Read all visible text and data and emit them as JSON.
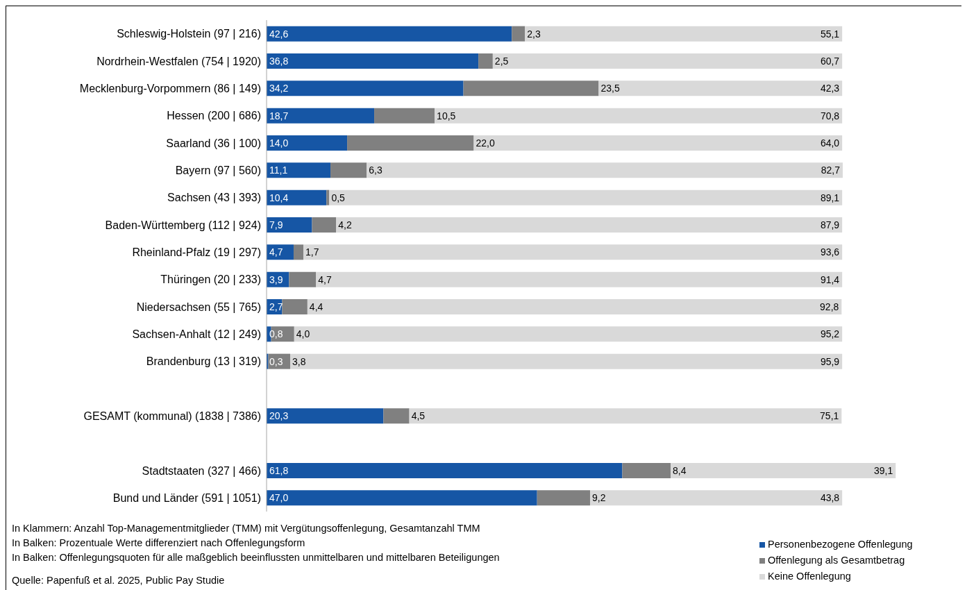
{
  "chart_data": {
    "type": "bar",
    "orientation": "horizontal",
    "stacked": true,
    "tick_labels": "y",
    "legend": "bottom right",
    "grid": false,
    "categories": [
      "Schleswig-Holstein (97 | 216)",
      "Nordrhein-Westfalen (754 | 1920)",
      "Mecklenburg-Vorpommern (86 | 149)",
      "Hessen (200 | 686)",
      "Saarland (36 | 100)",
      "Bayern (97 | 560)",
      "Sachsen (43 | 393)",
      "Baden-Württemberg (112 | 924)",
      "Rheinland-Pfalz (19 | 297)",
      "Thüringen (20 | 233)",
      "Niedersachsen (55 | 765)",
      "Sachsen-Anhalt (12 | 249)",
      "Brandenburg (13 | 319)",
      null,
      "GESAMT (kommunal) (1838 | 7386)",
      null,
      "Stadtstaaten (327 | 466)",
      "Bund und Länder (591 | 1051)"
    ],
    "series": [
      {
        "name": "Personenbezogene Offenlegung",
        "color": "#1656a5",
        "values": [
          42.6,
          36.8,
          34.2,
          18.7,
          14.0,
          11.1,
          10.4,
          7.9,
          4.7,
          3.9,
          2.7,
          0.8,
          0.3,
          null,
          20.3,
          null,
          61.8,
          47.0
        ],
        "value_labels": [
          "42,6",
          "36,8",
          "34,2",
          "18,7",
          "14,0",
          "11,1",
          "10,4",
          "7,9",
          "4,7",
          "3,9",
          "2,7",
          "0,8",
          "0,3",
          null,
          "20,3",
          null,
          "61,8",
          "47,0"
        ]
      },
      {
        "name": "Offenlegung als Gesamtbetrag",
        "color": "#808080",
        "values": [
          2.3,
          2.5,
          23.5,
          10.5,
          22.0,
          6.3,
          0.5,
          4.2,
          1.7,
          4.7,
          4.4,
          4.0,
          3.8,
          null,
          4.5,
          null,
          8.4,
          9.2
        ],
        "value_labels": [
          "2,3",
          "2,5",
          "23,5",
          "10,5",
          "22,0",
          "6,3",
          "0,5",
          "4,2",
          "1,7",
          "4,7",
          "4,4",
          "4,0",
          "3,8",
          null,
          "4,5",
          null,
          "8,4",
          "9,2"
        ]
      },
      {
        "name": "Keine Offenlegung",
        "color": "#d9d9d9",
        "values": [
          55.1,
          60.7,
          42.3,
          70.8,
          64.0,
          82.7,
          89.1,
          87.9,
          93.6,
          91.4,
          92.8,
          95.2,
          95.9,
          null,
          75.1,
          null,
          39.1,
          43.8
        ],
        "value_labels": [
          "55,1",
          "60,7",
          "42,3",
          "70,8",
          "64,0",
          "82,7",
          "89,1",
          "87,9",
          "93,6",
          "91,4",
          "92,8",
          "95,2",
          "95,9",
          null,
          "75,1",
          null,
          "39,1",
          "43,8"
        ]
      }
    ],
    "annotations": [
      "In Klammern: Anzahl Top-Managementmitglieder (TMM) mit Vergütungsoffenlegung, Gesamtanzahl TMM",
      "In Balken: Prozentuale Werte differenziert nach Offenlegungsform",
      "In Balken: Offenlegungsquoten für alle maßgeblich beeinflussten unmittelbaren und mittelbaren Beteiligungen",
      "Quelle: Papenfuß et al. 2025, Public Pay Studie"
    ]
  }
}
